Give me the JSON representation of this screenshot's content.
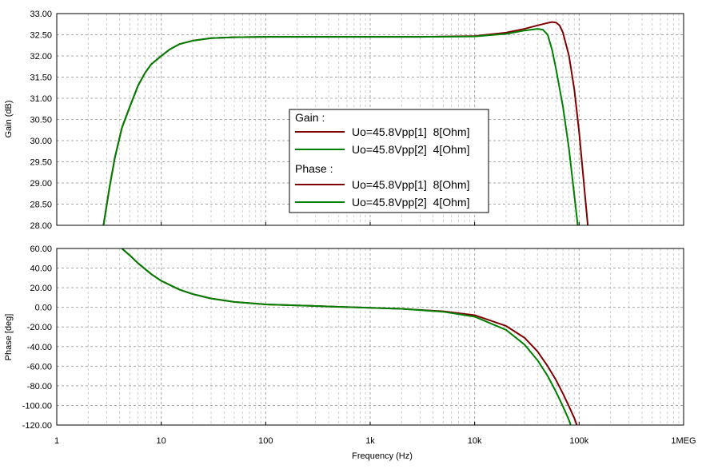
{
  "chart_data": [
    {
      "type": "line",
      "xlabel": "",
      "ylabel": "Gain (dB)",
      "xscale": "log",
      "xlim": [
        1,
        1000000
      ],
      "ylim": [
        28.0,
        33.0
      ],
      "yticks": [
        "33.00",
        "32.50",
        "32.00",
        "31.50",
        "31.00",
        "30.50",
        "30.00",
        "29.50",
        "29.00",
        "28.50",
        "28.00"
      ],
      "grid": true,
      "series": [
        {
          "name": "Uo=45.8Vpp[1]  8[Ohm]",
          "color": "#800000",
          "x": [
            2.8,
            3.2,
            3.6,
            4.2,
            5,
            6,
            7,
            8,
            10,
            12,
            15,
            20,
            30,
            50,
            100,
            300,
            1000,
            3000,
            10000,
            20000,
            30000,
            40000,
            50000,
            55000,
            60000,
            65000,
            70000,
            80000,
            90000,
            100000,
            110000,
            121000
          ],
          "values": [
            28.0,
            28.9,
            29.6,
            30.3,
            30.8,
            31.3,
            31.6,
            31.8,
            32.0,
            32.15,
            32.28,
            32.36,
            32.42,
            32.44,
            32.45,
            32.45,
            32.45,
            32.45,
            32.47,
            32.55,
            32.64,
            32.72,
            32.78,
            32.8,
            32.79,
            32.72,
            32.55,
            32.0,
            31.2,
            30.2,
            29.1,
            28.0
          ]
        },
        {
          "name": "Uo=45.8Vpp[2]  4[Ohm]",
          "color": "#008000",
          "x": [
            2.8,
            3.2,
            3.6,
            4.2,
            5,
            6,
            7,
            8,
            10,
            12,
            15,
            20,
            30,
            50,
            100,
            300,
            1000,
            3000,
            10000,
            20000,
            30000,
            40000,
            45000,
            50000,
            55000,
            60000,
            70000,
            80000,
            90000,
            97000
          ],
          "values": [
            28.0,
            28.9,
            29.6,
            30.3,
            30.8,
            31.3,
            31.6,
            31.8,
            32.0,
            32.15,
            32.28,
            32.36,
            32.42,
            32.44,
            32.45,
            32.45,
            32.45,
            32.45,
            32.46,
            32.52,
            32.6,
            32.64,
            32.62,
            32.5,
            32.15,
            31.7,
            30.8,
            29.8,
            28.7,
            28.0
          ]
        }
      ]
    },
    {
      "type": "line",
      "xlabel": "Frequency (Hz)",
      "ylabel": "Phase [deg]",
      "xscale": "log",
      "xlim": [
        1,
        1000000
      ],
      "ylim": [
        -120.0,
        60.0
      ],
      "xticks": [
        "1",
        "10",
        "100",
        "1k",
        "10k",
        "100k",
        "1MEG"
      ],
      "yticks": [
        "60.00",
        "40.00",
        "20.00",
        "0.00",
        "-20.00",
        "-40.00",
        "-60.00",
        "-80.00",
        "-100.00",
        "-120.00"
      ],
      "grid": true,
      "series": [
        {
          "name": "Uo=45.8Vpp[1]  8[Ohm]",
          "color": "#800000",
          "x": [
            4.2,
            5,
            6,
            8,
            10,
            15,
            20,
            30,
            50,
            100,
            200,
            500,
            1000,
            2000,
            5000,
            10000,
            20000,
            30000,
            40000,
            50000,
            60000,
            70000,
            80000,
            90000,
            95000
          ],
          "values": [
            60,
            53,
            45,
            34,
            27,
            18,
            13.5,
            9,
            5.5,
            3,
            2,
            0.5,
            -0.5,
            -1.5,
            -4,
            -8,
            -19,
            -31,
            -45,
            -60,
            -74,
            -88,
            -101,
            -113,
            -120
          ]
        },
        {
          "name": "Uo=45.8Vpp[2]  4[Ohm]",
          "color": "#008000",
          "x": [
            4.2,
            5,
            6,
            8,
            10,
            15,
            20,
            30,
            50,
            100,
            200,
            500,
            1000,
            2000,
            5000,
            10000,
            20000,
            30000,
            40000,
            50000,
            60000,
            70000,
            80000,
            83000
          ],
          "values": [
            60,
            53,
            45,
            34,
            27,
            18,
            13.5,
            9,
            5.5,
            3,
            2,
            0.5,
            -0.5,
            -1.5,
            -4.5,
            -9.5,
            -23,
            -38,
            -54,
            -70,
            -86,
            -101,
            -115,
            -120
          ]
        }
      ]
    }
  ],
  "legend": {
    "gain_title": "Gain :",
    "phase_title": "Phase :",
    "entries": [
      {
        "label": "Uo=45.8Vpp[1]  8[Ohm]",
        "color": "#800000"
      },
      {
        "label": "Uo=45.8Vpp[2]  4[Ohm]",
        "color": "#008000"
      },
      {
        "label": "Uo=45.8Vpp[1]  8[Ohm]",
        "color": "#800000"
      },
      {
        "label": "Uo=45.8Vpp[2]  4[Ohm]",
        "color": "#008000"
      }
    ]
  }
}
